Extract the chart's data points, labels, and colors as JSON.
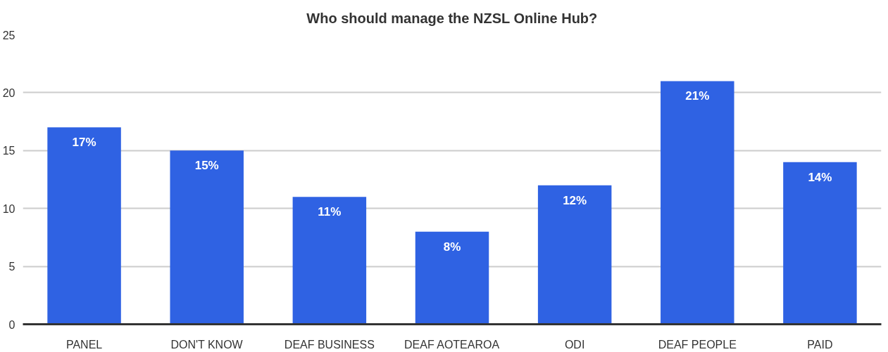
{
  "chart_data": {
    "type": "bar",
    "title": "Who should manage the NZSL Online Hub?",
    "categories": [
      "PANEL",
      "DON'T KNOW",
      "DEAF BUSINESS",
      "DEAF AOTEAROA",
      "ODI",
      "DEAF PEOPLE",
      "PAID"
    ],
    "values": [
      17,
      15,
      11,
      8,
      12,
      21,
      14
    ],
    "value_labels": [
      "17%",
      "15%",
      "11%",
      "8%",
      "12%",
      "21%",
      "14%"
    ],
    "color": "#2f62e3",
    "ylim": [
      0,
      25
    ],
    "yticks": [
      0,
      5,
      10,
      15,
      20,
      25
    ],
    "grid": "y"
  }
}
